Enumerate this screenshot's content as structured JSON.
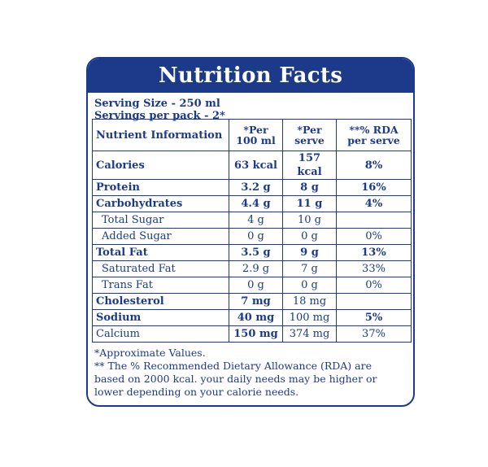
{
  "panel": {
    "title": "Nutrition Facts",
    "serving_size": "Serving Size - 250 ml",
    "servings_per_pack": "Servings per pack - 2*",
    "headers": {
      "nutrient": "Nutrient Information",
      "per100": "*Per 100 ml",
      "perServe": "*Per serve",
      "rda": "**% RDA per serve"
    },
    "rows": [
      {
        "name": "Calories",
        "per100": "63 kcal",
        "perServe": "157 kcal",
        "rda": "8%"
      },
      {
        "name": "Protein",
        "per100": "3.2 g",
        "perServe": "8 g",
        "rda": "16%"
      },
      {
        "name": "Carbohydrates",
        "per100": "4.4 g",
        "perServe": "11 g",
        "rda": "4%"
      },
      {
        "name": "Total Sugar",
        "per100": "4 g",
        "perServe": "10 g",
        "rda": ""
      },
      {
        "name": "Added Sugar",
        "per100": "0 g",
        "perServe": "0 g",
        "rda": "0%"
      },
      {
        "name": "Total Fat",
        "per100": "3.5 g",
        "perServe": "9 g",
        "rda": "13%"
      },
      {
        "name": "Saturated Fat",
        "per100": "2.9 g",
        "perServe": "7 g",
        "rda": "33%"
      },
      {
        "name": "Trans Fat",
        "per100": "0 g",
        "perServe": "0 g",
        "rda": "0%"
      },
      {
        "name": "Cholesterol",
        "per100": "7 mg",
        "perServe": "18 mg",
        "rda": ""
      },
      {
        "name": "Sodium",
        "per100": "40 mg",
        "perServe": "100 mg",
        "rda": "5%"
      },
      {
        "name": "Calcium",
        "per100": "150 mg",
        "perServe": "374 mg",
        "rda": "37%"
      }
    ],
    "footnote1": "*Approximate Values.",
    "footnote2": "** The % Recommended Dietary Allowance (RDA) are based on 2000 kcal. your daily needs may be higher or lower depending on your calorie needs."
  },
  "colors": {
    "brand_blue": "#1d3a8a",
    "background": "#ffffff"
  }
}
